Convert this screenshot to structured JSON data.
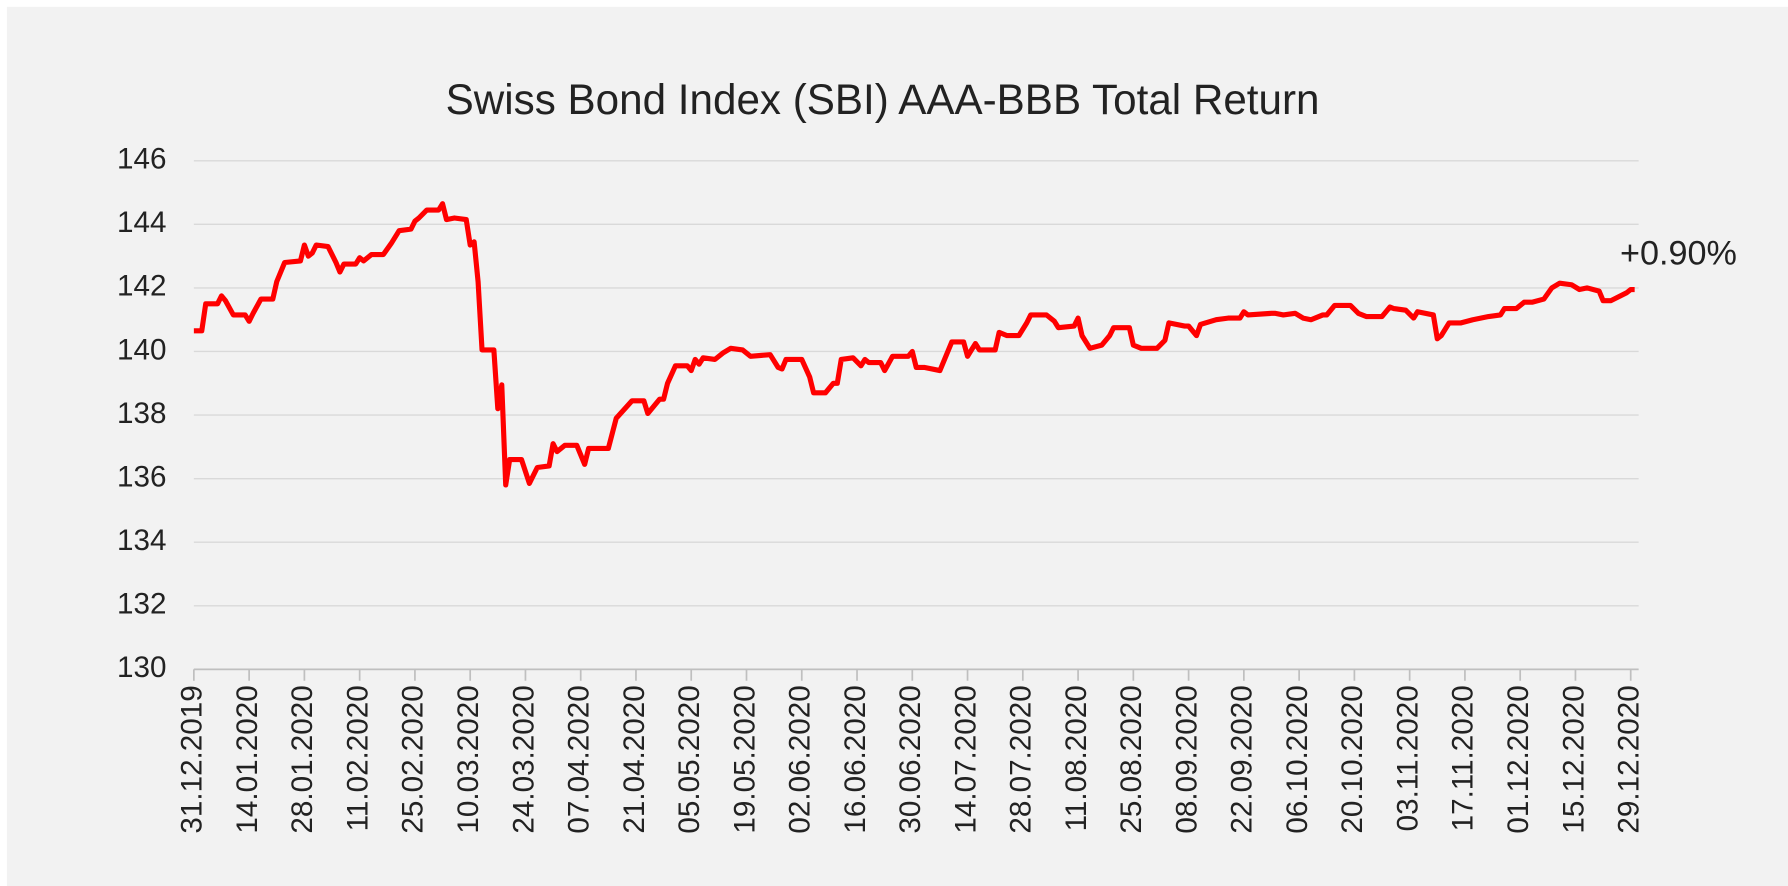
{
  "chart_data": {
    "type": "line",
    "title": "Swiss Bond Index (SBI) AAA-BBB Total Return",
    "annotation": "+0.90%",
    "grid": true,
    "ylim": [
      130,
      146
    ],
    "yticks": [
      130,
      132,
      134,
      136,
      138,
      140,
      142,
      144,
      146
    ],
    "xlim": [
      "31.12.2019",
      "31.12.2020"
    ],
    "xticks": [
      "31.12.2019",
      "14.01.2020",
      "28.01.2020",
      "11.02.2020",
      "25.02.2020",
      "10.03.2020",
      "24.03.2020",
      "07.04.2020",
      "21.04.2020",
      "05.05.2020",
      "19.05.2020",
      "02.06.2020",
      "16.06.2020",
      "30.06.2020",
      "14.07.2020",
      "28.07.2020",
      "11.08.2020",
      "25.08.2020",
      "08.09.2020",
      "22.09.2020",
      "06.10.2020",
      "20.10.2020",
      "03.11.2020",
      "17.11.2020",
      "01.12.2020",
      "15.12.2020",
      "29.12.2020"
    ],
    "x": [
      "31.12.2019",
      "02.01.2020",
      "03.01.2020",
      "06.01.2020",
      "07.01.2020",
      "08.01.2020",
      "10.01.2020",
      "13.01.2020",
      "14.01.2020",
      "15.01.2020",
      "17.01.2020",
      "20.01.2020",
      "21.01.2020",
      "23.01.2020",
      "27.01.2020",
      "28.01.2020",
      "29.01.2020",
      "30.01.2020",
      "31.01.2020",
      "03.02.2020",
      "05.02.2020",
      "06.02.2020",
      "07.02.2020",
      "10.02.2020",
      "11.02.2020",
      "12.02.2020",
      "14.02.2020",
      "17.02.2020",
      "19.02.2020",
      "21.02.2020",
      "24.02.2020",
      "25.02.2020",
      "26.02.2020",
      "28.02.2020",
      "02.03.2020",
      "03.03.2020",
      "04.03.2020",
      "06.03.2020",
      "09.03.2020",
      "10.03.2020",
      "11.03.2020",
      "12.03.2020",
      "13.03.2020",
      "16.03.2020",
      "17.03.2020",
      "18.03.2020",
      "19.03.2020",
      "20.03.2020",
      "23.03.2020",
      "25.03.2020",
      "27.03.2020",
      "30.03.2020",
      "31.03.2020",
      "01.04.2020",
      "03.04.2020",
      "06.04.2020",
      "08.04.2020",
      "09.04.2020",
      "14.04.2020",
      "16.04.2020",
      "20.04.2020",
      "23.04.2020",
      "24.04.2020",
      "27.04.2020",
      "28.04.2020",
      "29.04.2020",
      "01.05.2020",
      "04.05.2020",
      "05.05.2020",
      "06.05.2020",
      "07.05.2020",
      "08.05.2020",
      "11.05.2020",
      "13.05.2020",
      "15.05.2020",
      "18.05.2020",
      "20.05.2020",
      "25.05.2020",
      "27.05.2020",
      "28.05.2020",
      "29.05.2020",
      "02.06.2020",
      "04.06.2020",
      "05.06.2020",
      "08.06.2020",
      "10.06.2020",
      "11.06.2020",
      "12.06.2020",
      "15.06.2020",
      "17.06.2020",
      "18.06.2020",
      "19.06.2020",
      "22.06.2020",
      "23.06.2020",
      "25.06.2020",
      "29.06.2020",
      "30.06.2020",
      "01.07.2020",
      "03.07.2020",
      "07.07.2020",
      "10.07.2020",
      "13.07.2020",
      "14.07.2020",
      "15.07.2020",
      "16.07.2020",
      "17.07.2020",
      "21.07.2020",
      "22.07.2020",
      "24.07.2020",
      "27.07.2020",
      "29.07.2020",
      "30.07.2020",
      "03.08.2020",
      "05.08.2020",
      "06.08.2020",
      "10.08.2020",
      "11.08.2020",
      "12.08.2020",
      "14.08.2020",
      "17.08.2020",
      "19.08.2020",
      "20.08.2020",
      "24.08.2020",
      "25.08.2020",
      "27.08.2020",
      "31.08.2020",
      "02.09.2020",
      "03.09.2020",
      "07.09.2020",
      "08.09.2020",
      "10.09.2020",
      "11.09.2020",
      "15.09.2020",
      "18.09.2020",
      "21.09.2020",
      "22.09.2020",
      "23.09.2020",
      "29.09.2020",
      "30.09.2020",
      "02.10.2020",
      "05.10.2020",
      "07.10.2020",
      "09.10.2020",
      "12.10.2020",
      "13.10.2020",
      "15.10.2020",
      "19.10.2020",
      "21.10.2020",
      "23.10.2020",
      "27.10.2020",
      "29.10.2020",
      "30.10.2020",
      "02.11.2020",
      "04.11.2020",
      "05.11.2020",
      "09.11.2020",
      "10.11.2020",
      "11.11.2020",
      "13.11.2020",
      "16.11.2020",
      "19.11.2020",
      "23.11.2020",
      "26.11.2020",
      "27.11.2020",
      "30.11.2020",
      "02.12.2020",
      "04.12.2020",
      "07.12.2020",
      "09.12.2020",
      "11.12.2020",
      "14.12.2020",
      "16.12.2020",
      "18.12.2020",
      "21.12.2020",
      "22.12.2020",
      "24.12.2020",
      "28.12.2020",
      "29.12.2020",
      "30.12.2020"
    ],
    "series": [
      {
        "color": "#ff0000",
        "values": [
          140.65,
          140.65,
          141.5,
          141.5,
          141.75,
          141.6,
          141.15,
          141.15,
          140.95,
          141.2,
          141.65,
          141.65,
          142.2,
          142.8,
          142.85,
          143.35,
          143.0,
          143.1,
          143.35,
          143.3,
          142.8,
          142.5,
          142.75,
          142.75,
          142.95,
          142.85,
          143.05,
          143.05,
          143.4,
          143.8,
          143.85,
          144.1,
          144.2,
          144.45,
          144.45,
          144.65,
          144.15,
          144.2,
          144.15,
          143.35,
          143.45,
          142.2,
          140.05,
          140.05,
          138.2,
          138.95,
          135.8,
          136.6,
          136.6,
          135.85,
          136.35,
          136.4,
          137.1,
          136.85,
          137.05,
          137.05,
          136.45,
          136.95,
          136.95,
          137.9,
          138.45,
          138.45,
          138.05,
          138.5,
          138.5,
          139.0,
          139.55,
          139.55,
          139.4,
          139.75,
          139.6,
          139.8,
          139.75,
          139.95,
          140.1,
          140.05,
          139.85,
          139.9,
          139.5,
          139.45,
          139.75,
          139.75,
          139.2,
          138.7,
          138.7,
          139.0,
          139.0,
          139.75,
          139.8,
          139.55,
          139.75,
          139.65,
          139.65,
          139.4,
          139.85,
          139.85,
          140.0,
          139.5,
          139.5,
          139.4,
          140.3,
          140.3,
          139.85,
          140.05,
          140.25,
          140.05,
          140.05,
          140.6,
          140.5,
          140.5,
          140.9,
          141.15,
          141.15,
          140.95,
          140.75,
          140.8,
          141.05,
          140.5,
          140.1,
          140.2,
          140.5,
          140.75,
          140.75,
          140.2,
          140.1,
          140.1,
          140.35,
          140.9,
          140.8,
          140.8,
          140.5,
          140.85,
          141.0,
          141.05,
          141.05,
          141.25,
          141.15,
          141.2,
          141.2,
          141.15,
          141.2,
          141.05,
          141.0,
          141.15,
          141.15,
          141.45,
          141.45,
          141.2,
          141.1,
          141.1,
          141.4,
          141.35,
          141.3,
          141.05,
          141.25,
          141.15,
          140.4,
          140.5,
          140.9,
          140.9,
          141.0,
          141.1,
          141.15,
          141.35,
          141.35,
          141.55,
          141.55,
          141.65,
          142.0,
          142.15,
          142.1,
          141.95,
          142.0,
          141.9,
          141.6,
          141.6,
          141.85,
          141.95,
          141.95
        ]
      }
    ]
  }
}
